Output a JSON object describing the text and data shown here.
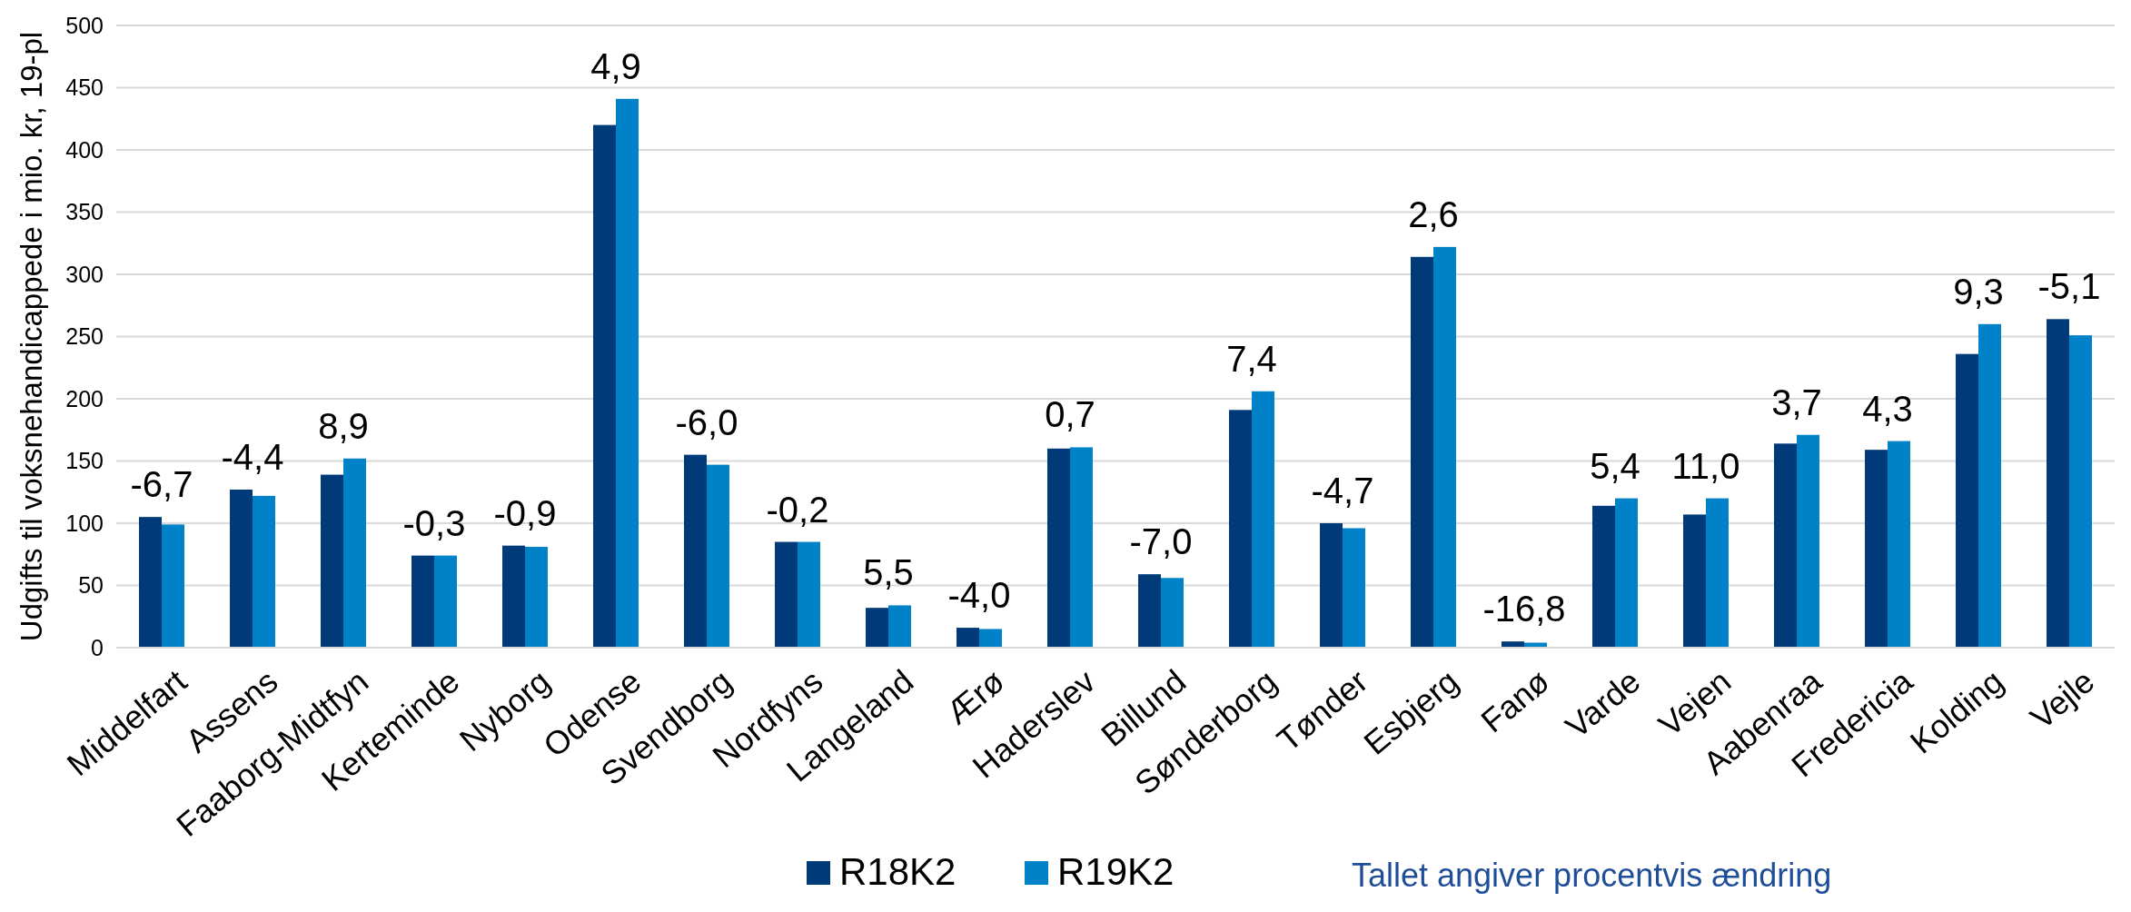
{
  "chart_data": {
    "type": "bar",
    "ylabel": "Udgifts til voksnehandicappede i mio. kr, 19-pl",
    "categories": [
      "Middelfart",
      "Assens",
      "Faaborg-Midtfyn",
      "Kerteminde",
      "Nyborg",
      "Odense",
      "Svendborg",
      "Nordfyns",
      "Langeland",
      "Ærø",
      "Haderslev",
      "Billund",
      "Sønderborg",
      "Tønder",
      "Esbjerg",
      "Fanø",
      "Varde",
      "Vejen",
      "Aabenraa",
      "Fredericia",
      "Kolding",
      "Vejle"
    ],
    "series": [
      {
        "name": "R18K2",
        "color": "#003a78",
        "values": [
          105,
          127,
          139,
          74,
          82,
          420,
          155,
          85,
          32,
          16,
          160,
          59,
          191,
          100,
          314,
          5,
          114,
          107,
          164,
          159,
          236,
          264
        ]
      },
      {
        "name": "R19K2",
        "color": "#0082c8",
        "values": [
          99,
          122,
          152,
          74,
          81,
          441,
          147,
          85,
          34,
          15,
          161,
          56,
          206,
          96,
          322,
          4,
          120,
          120,
          171,
          166,
          260,
          251
        ]
      }
    ],
    "ylim": [
      0,
      500
    ],
    "yticks": [
      0,
      50,
      100,
      150,
      200,
      250,
      300,
      350,
      400,
      450,
      500
    ],
    "grid": "y",
    "legend": "bottom",
    "annotations": [
      "-6,7",
      "-4,4",
      "8,9",
      "-0,3",
      "-0,9",
      "4,9",
      "-6,0",
      "-0,2",
      "5,5",
      "-4,0",
      "0,7",
      "-7,0",
      "7,4",
      "-4,7",
      "2,6",
      "-16,8",
      "5,4",
      "11,0",
      "3,7",
      "4,3",
      "9,3",
      "-5,1",
      "Tallet angiver procentvis ændring"
    ]
  }
}
